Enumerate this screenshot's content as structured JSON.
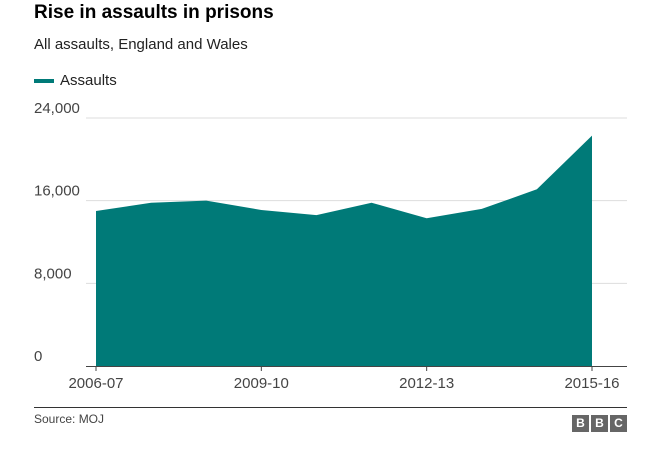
{
  "header": {
    "title": "Rise in assaults in prisons",
    "subtitle": "All assaults, England and Wales"
  },
  "footer": {
    "source": "Source: MOJ",
    "logo": [
      "B",
      "B",
      "C"
    ]
  },
  "colors": {
    "series": "#007a78",
    "grid": "#dddddd",
    "axis": "#444444"
  },
  "chart_data": {
    "type": "area",
    "title": "Rise in assaults in prisons",
    "subtitle": "All assaults, England and Wales",
    "xlabel": "",
    "ylabel": "",
    "categories": [
      "2006-07",
      "2007-08",
      "2008-09",
      "2009-10",
      "2010-11",
      "2011-12",
      "2012-13",
      "2013-14",
      "2014-15",
      "2015-16"
    ],
    "series": [
      {
        "name": "Assaults",
        "values": [
          15000,
          15800,
          16000,
          15100,
          14600,
          15800,
          14300,
          15200,
          17100,
          22300
        ]
      }
    ],
    "ylim": [
      0,
      24000
    ],
    "yticks": [
      0,
      8000,
      16000,
      24000
    ],
    "ytick_labels": [
      "0",
      "8,000",
      "16,000",
      "24,000"
    ],
    "xtick_labels": [
      {
        "index": 0,
        "label": "2006-07"
      },
      {
        "index": 3,
        "label": "2009-10"
      },
      {
        "index": 6,
        "label": "2012-13"
      },
      {
        "index": 9,
        "label": "2015-16"
      }
    ],
    "grid": true,
    "legend_position": "top-left"
  }
}
